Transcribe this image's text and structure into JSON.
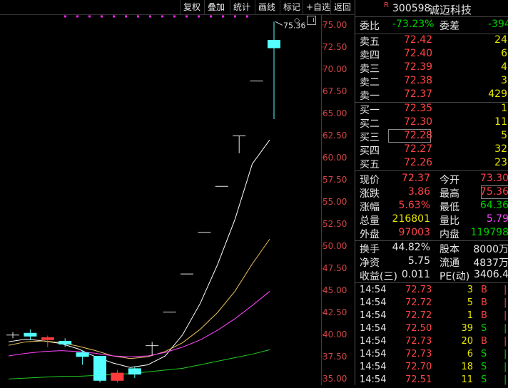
{
  "toolbar": {
    "buttons": [
      "复权",
      "叠加",
      "统计",
      "画线",
      "标记",
      "+自选",
      "返回"
    ]
  },
  "stock": {
    "badge": "R",
    "code": "300598",
    "name": "诚迈科技"
  },
  "weibi": {
    "label1": "委比",
    "value1": "-73.23%",
    "label2": "委差",
    "value2": "-394"
  },
  "asks": [
    {
      "label": "卖五",
      "price": "72.42",
      "vol": "24"
    },
    {
      "label": "卖四",
      "price": "72.40",
      "vol": "6"
    },
    {
      "label": "卖三",
      "price": "72.39",
      "vol": "4"
    },
    {
      "label": "卖二",
      "price": "72.38",
      "vol": "3"
    },
    {
      "label": "卖一",
      "price": "72.37",
      "vol": "429"
    }
  ],
  "bids": [
    {
      "label": "买一",
      "price": "72.35",
      "vol": "1"
    },
    {
      "label": "买二",
      "price": "72.30",
      "vol": "11"
    },
    {
      "label": "买三",
      "price": "72.28",
      "vol": "5"
    },
    {
      "label": "买四",
      "price": "72.27",
      "vol": "32"
    },
    {
      "label": "买五",
      "price": "72.26",
      "vol": "23"
    }
  ],
  "quote": [
    {
      "l1": "现价",
      "v1": "72.37",
      "c1": "red",
      "l2": "今开",
      "v2": "73.30",
      "c2": "red"
    },
    {
      "l1": "涨跌",
      "v1": "3.86",
      "c1": "red",
      "l2": "最高",
      "v2": "75.36",
      "c2": "red"
    },
    {
      "l1": "涨幅",
      "v1": "5.63%",
      "c1": "red",
      "l2": "最低",
      "v2": "64.36",
      "c2": "green"
    },
    {
      "l1": "总量",
      "v1": "216801",
      "c1": "yellow",
      "l2": "量比",
      "v2": "5.79",
      "c2": "magenta"
    },
    {
      "l1": "外盘",
      "v1": "97003",
      "c1": "red",
      "l2": "内盘",
      "v2": "119798",
      "c2": "green"
    }
  ],
  "fundamentals": [
    {
      "l1": "换手",
      "v1": "44.82%",
      "l2": "股本",
      "v2": "8000万"
    },
    {
      "l1": "净资",
      "v1": "5.75",
      "l2": "流通",
      "v2": "4837万"
    },
    {
      "l1": "收益(三)",
      "v1": "0.011",
      "l2": "PE(动)",
      "v2": "3406.4"
    }
  ],
  "ticks": [
    {
      "time": "14:54",
      "price": "72.73",
      "vol": "3",
      "side": "B"
    },
    {
      "time": "14:54",
      "price": "72.72",
      "vol": "5",
      "side": "B"
    },
    {
      "time": "14:54",
      "price": "72.72",
      "vol": "1",
      "side": "B"
    },
    {
      "time": "14:54",
      "price": "72.50",
      "vol": "39",
      "side": "S"
    },
    {
      "time": "14:54",
      "price": "72.73",
      "vol": "20",
      "side": "B"
    },
    {
      "time": "14:54",
      "price": "72.73",
      "vol": "6",
      "side": "S"
    },
    {
      "time": "14:54",
      "price": "72.70",
      "vol": "18",
      "side": "S"
    },
    {
      "time": "14:54",
      "price": "72.51",
      "vol": "11",
      "side": "S"
    }
  ],
  "chart_data": {
    "type": "candlestick",
    "y_axis_ticks": [
      "75.00",
      "72.50",
      "70.00",
      "67.50",
      "65.00",
      "62.50",
      "60.00",
      "57.50",
      "55.00",
      "52.50",
      "50.00",
      "47.50",
      "45.00",
      "42.50",
      "40.00",
      "37.50",
      "35.00"
    ],
    "ylim": [
      34.3,
      76.2
    ],
    "high_label": "75.36",
    "candles": [
      {
        "o": 40.0,
        "h": 40.3,
        "l": 39.6,
        "c": 40.0,
        "color": "white"
      },
      {
        "o": 39.8,
        "h": 40.6,
        "l": 39.4,
        "c": 40.2,
        "color": "cyan"
      },
      {
        "o": 39.7,
        "h": 39.9,
        "l": 38.6,
        "c": 39.4,
        "color": "red"
      },
      {
        "o": 39.3,
        "h": 39.6,
        "l": 38.6,
        "c": 38.9,
        "color": "cyan"
      },
      {
        "o": 38.0,
        "h": 38.2,
        "l": 36.6,
        "c": 37.5,
        "color": "cyan"
      },
      {
        "o": 37.6,
        "h": 37.6,
        "l": 34.6,
        "c": 34.8,
        "color": "cyan"
      },
      {
        "o": 34.8,
        "h": 36.0,
        "l": 34.6,
        "c": 35.7,
        "color": "red"
      },
      {
        "o": 36.2,
        "h": 36.4,
        "l": 35.1,
        "c": 35.5,
        "color": "cyan"
      },
      {
        "o": 38.8,
        "h": 39.2,
        "l": 37.7,
        "c": 38.8,
        "color": "white"
      },
      {
        "o": 42.6,
        "h": 42.6,
        "l": 42.6,
        "c": 42.6,
        "color": "white"
      },
      {
        "o": 46.9,
        "h": 46.9,
        "l": 46.9,
        "c": 46.9,
        "color": "white"
      },
      {
        "o": 51.6,
        "h": 51.6,
        "l": 51.6,
        "c": 51.6,
        "color": "white"
      },
      {
        "o": 56.8,
        "h": 56.8,
        "l": 56.8,
        "c": 56.8,
        "color": "white"
      },
      {
        "o": 62.5,
        "h": 62.5,
        "l": 60.5,
        "c": 62.5,
        "color": "white"
      },
      {
        "o": 68.7,
        "h": 68.7,
        "l": 68.7,
        "c": 68.7,
        "color": "white"
      },
      {
        "o": 73.3,
        "h": 75.36,
        "l": 64.36,
        "c": 72.37,
        "color": "cyan"
      }
    ],
    "ma_lines": [
      {
        "color": "#ffffff",
        "values": [
          39.2,
          39.5,
          39.3,
          39.0,
          38.4,
          37.5,
          36.8,
          36.3,
          36.6,
          37.6,
          40.0,
          43.5,
          47.9,
          53.0,
          59.3,
          62.0
        ]
      },
      {
        "color": "#e8c060",
        "values": [
          38.8,
          39.2,
          39.3,
          39.1,
          38.7,
          38.2,
          37.6,
          37.3,
          37.5,
          38.1,
          39.1,
          40.6,
          42.5,
          44.9,
          48.0,
          50.8
        ]
      },
      {
        "color": "#ff44ff",
        "values": [
          37.6,
          37.9,
          38.1,
          38.2,
          38.1,
          37.9,
          37.6,
          37.5,
          37.6,
          38.0,
          38.6,
          39.4,
          40.5,
          41.8,
          43.3,
          44.9
        ]
      },
      {
        "color": "#22cc22",
        "values": [
          35.0,
          35.1,
          35.2,
          35.3,
          35.3,
          35.4,
          35.5,
          35.6,
          35.8,
          36.0,
          36.2,
          36.6,
          37.0,
          37.4,
          37.8,
          38.3
        ]
      }
    ]
  }
}
